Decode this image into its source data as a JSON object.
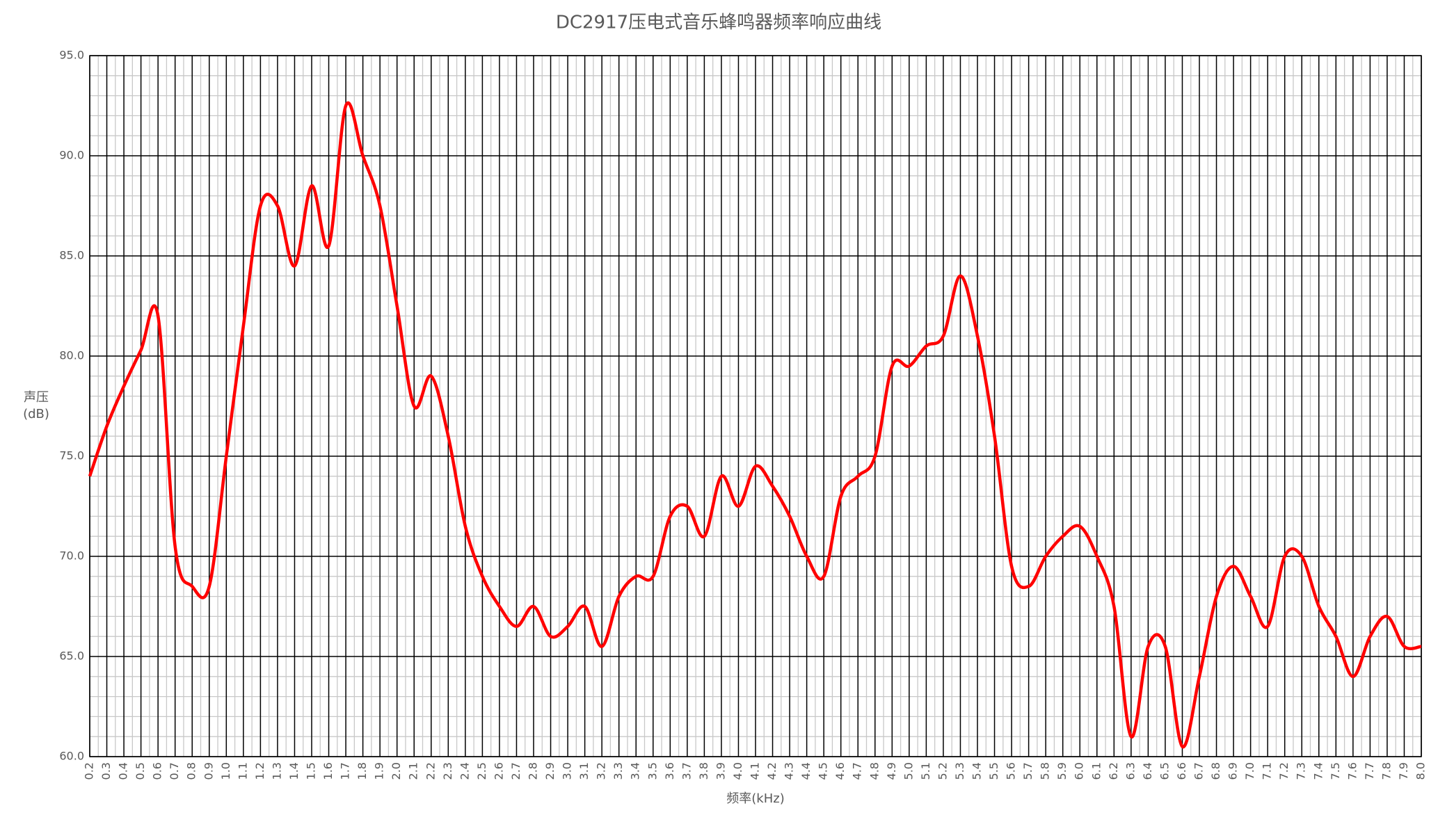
{
  "chart_data": {
    "type": "line",
    "title": "DC2917压电式音乐蜂鸣器频率响应曲线",
    "x_label": "频率(kHz)",
    "y_label": [
      "声压",
      "(dB)"
    ],
    "x": [
      0.2,
      0.3,
      0.4,
      0.5,
      0.6,
      0.7,
      0.8,
      0.9,
      1,
      1.1,
      1.2,
      1.3,
      1.4,
      1.5,
      1.6,
      1.7,
      1.8,
      1.9,
      2,
      2.1,
      2.2,
      2.3,
      2.4,
      2.5,
      2.6,
      2.7,
      2.8,
      2.9,
      3,
      3.1,
      3.2,
      3.3,
      3.4,
      3.5,
      3.6,
      3.7,
      3.8,
      3.9,
      4,
      4.1,
      4.2,
      4.3,
      4.4,
      4.5,
      4.6,
      4.7,
      4.8,
      4.9,
      5,
      5.1,
      5.2,
      5.3,
      5.4,
      5.5,
      5.6,
      5.7,
      5.8,
      5.9,
      6,
      6.1,
      6.2,
      6.3,
      6.4,
      6.5,
      6.6,
      6.7,
      6.8,
      6.9,
      7,
      7.1,
      7.2,
      7.3,
      7.4,
      7.5,
      7.6,
      7.7,
      7.8,
      7.9,
      8
    ],
    "series": [
      {
        "color": "#ff0000",
        "values": [
          74.0,
          76.5,
          78.5,
          80.3,
          82.0,
          70.5,
          68.5,
          68.5,
          75.0,
          81.5,
          87.5,
          87.5,
          84.5,
          88.5,
          85.5,
          92.5,
          90.0,
          87.5,
          82.5,
          77.5,
          79.0,
          76.0,
          71.5,
          69.0,
          67.5,
          66.5,
          67.5,
          66.0,
          66.5,
          67.5,
          65.5,
          68.0,
          69.0,
          69.0,
          72.0,
          72.5,
          71.0,
          74.0,
          72.5,
          74.5,
          73.5,
          72.0,
          70.0,
          69.0,
          73.0,
          74.0,
          75.0,
          79.5,
          79.5,
          80.5,
          81.0,
          84.0,
          81.0,
          76.0,
          69.5,
          68.5,
          70.0,
          71.0,
          71.5,
          70.0,
          67.5,
          61.0,
          65.5,
          65.5,
          60.5,
          64.0,
          68.0,
          69.5,
          68.0,
          66.5,
          70.0,
          70.0,
          67.5,
          66.0,
          64.0,
          66.0,
          67.0,
          65.5,
          65.5
        ]
      }
    ],
    "xlim": [
      0.2,
      8
    ],
    "xticks": [
      0.2,
      0.3,
      0.4,
      0.5,
      0.6,
      0.7,
      0.8,
      0.9,
      {
        "value": 1,
        "label": "1.0"
      },
      1.1,
      1.2,
      1.3,
      1.4,
      1.5,
      1.6,
      1.7,
      1.8,
      1.9,
      {
        "value": 2,
        "label": "2.0"
      },
      2.1,
      2.2,
      2.3,
      2.4,
      2.5,
      2.6,
      2.7,
      2.8,
      2.9,
      {
        "value": 3,
        "label": "3.0"
      },
      3.1,
      3.2,
      3.3,
      3.4,
      3.5,
      3.6,
      3.7,
      3.8,
      3.9,
      {
        "value": 4,
        "label": "4.0"
      },
      4.1,
      4.2,
      4.3,
      4.4,
      4.5,
      4.6,
      4.7,
      4.8,
      4.9,
      {
        "value": 5,
        "label": "5.0"
      },
      5.1,
      5.2,
      5.3,
      5.4,
      5.5,
      5.6,
      5.7,
      5.8,
      5.9,
      {
        "value": 6,
        "label": "6.0"
      },
      6.1,
      6.2,
      6.3,
      6.4,
      6.5,
      6.6,
      6.7,
      6.8,
      6.9,
      {
        "value": 7,
        "label": "7.0"
      },
      7.1,
      7.2,
      7.3,
      7.4,
      7.5,
      7.6,
      7.7,
      7.8,
      7.9,
      {
        "value": 8,
        "label": "8.0"
      }
    ],
    "ylim": [
      60,
      95
    ],
    "yticks": [
      {
        "value": 60,
        "label": "60.0"
      },
      {
        "value": 65,
        "label": "65.0"
      },
      {
        "value": 70,
        "label": "70.0"
      },
      {
        "value": 75,
        "label": "75.0"
      },
      {
        "value": 80,
        "label": "80.0"
      },
      {
        "value": 85,
        "label": "85.0"
      },
      {
        "value": 90,
        "label": "90.0"
      },
      {
        "value": 95,
        "label": "95.0"
      }
    ],
    "grid": true
  }
}
